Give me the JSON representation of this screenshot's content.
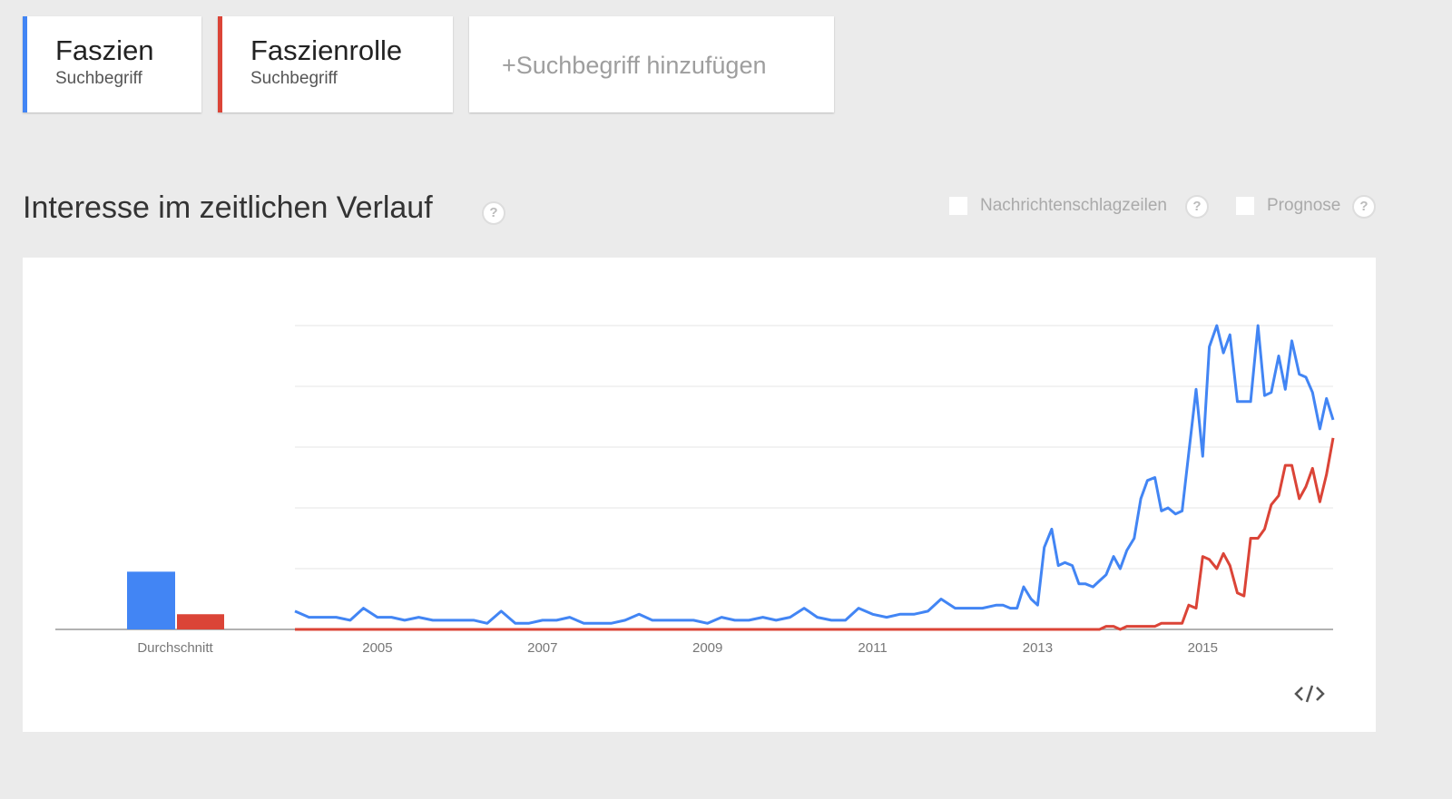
{
  "terms_label": "Suchbegriff",
  "add_term": "+Suchbegriff hinzufügen",
  "section_title": "Interesse im zeitlichen Verlauf",
  "help": "?",
  "options": [
    "Nachrichtenschlagzeilen",
    "Prognose"
  ],
  "chart_data": {
    "type": "line",
    "average_label": "Durchschnitt",
    "x": [
      2004.0,
      2004.17,
      2004.33,
      2004.5,
      2004.67,
      2004.83,
      2005.0,
      2005.17,
      2005.33,
      2005.5,
      2005.67,
      2005.83,
      2006.0,
      2006.17,
      2006.33,
      2006.5,
      2006.67,
      2006.83,
      2007.0,
      2007.17,
      2007.33,
      2007.5,
      2007.67,
      2007.83,
      2008.0,
      2008.17,
      2008.33,
      2008.5,
      2008.67,
      2008.83,
      2009.0,
      2009.17,
      2009.33,
      2009.5,
      2009.67,
      2009.83,
      2010.0,
      2010.17,
      2010.33,
      2010.5,
      2010.67,
      2010.83,
      2011.0,
      2011.17,
      2011.33,
      2011.5,
      2011.67,
      2011.83,
      2012.0,
      2012.17,
      2012.33,
      2012.5,
      2012.58,
      2012.67,
      2012.75,
      2012.83,
      2012.92,
      2013.0,
      2013.08,
      2013.17,
      2013.25,
      2013.33,
      2013.42,
      2013.5,
      2013.58,
      2013.67,
      2013.75,
      2013.83,
      2013.92,
      2014.0,
      2014.08,
      2014.17,
      2014.25,
      2014.33,
      2014.42,
      2014.5,
      2014.58,
      2014.67,
      2014.75,
      2014.83,
      2014.92,
      2015.0,
      2015.08,
      2015.17,
      2015.25,
      2015.33,
      2015.42,
      2015.5,
      2015.58,
      2015.67,
      2015.75,
      2015.83,
      2015.92,
      2016.0,
      2016.08,
      2016.17,
      2016.25,
      2016.33,
      2016.42,
      2016.5,
      2016.58
    ],
    "xlim": [
      2004,
      2016.58
    ],
    "xticks": [
      2005,
      2007,
      2009,
      2011,
      2013,
      2015
    ],
    "ylim": [
      0,
      100
    ],
    "ygrid": [
      0,
      20,
      40,
      60,
      80,
      100
    ],
    "series": [
      {
        "name": "Faszien",
        "color": "#4285f4",
        "average": 19,
        "values": [
          6,
          4,
          4,
          4,
          3,
          7,
          4,
          4,
          3,
          4,
          3,
          3,
          3,
          3,
          2,
          6,
          2,
          2,
          3,
          3,
          4,
          2,
          2,
          2,
          3,
          5,
          3,
          3,
          3,
          3,
          2,
          4,
          3,
          3,
          4,
          3,
          4,
          7,
          4,
          3,
          3,
          7,
          5,
          4,
          5,
          5,
          6,
          10,
          7,
          7,
          7,
          8,
          8,
          7,
          7,
          14,
          10,
          8,
          27,
          33,
          21,
          22,
          21,
          15,
          15,
          14,
          16,
          18,
          24,
          20,
          26,
          30,
          43,
          49,
          50,
          39,
          40,
          38,
          39,
          58,
          79,
          57,
          93,
          100,
          91,
          97,
          75,
          75,
          75,
          100,
          77,
          78,
          90,
          79,
          95,
          84,
          83,
          78,
          66,
          76,
          69
        ]
      },
      {
        "name": "Faszienrolle",
        "color": "#db4437",
        "average": 5,
        "values": [
          0,
          0,
          0,
          0,
          0,
          0,
          0,
          0,
          0,
          0,
          0,
          0,
          0,
          0,
          0,
          0,
          0,
          0,
          0,
          0,
          0,
          0,
          0,
          0,
          0,
          0,
          0,
          0,
          0,
          0,
          0,
          0,
          0,
          0,
          0,
          0,
          0,
          0,
          0,
          0,
          0,
          0,
          0,
          0,
          0,
          0,
          0,
          0,
          0,
          0,
          0,
          0,
          0,
          0,
          0,
          0,
          0,
          0,
          0,
          0,
          0,
          0,
          0,
          0,
          0,
          0,
          0,
          1,
          1,
          0,
          1,
          1,
          1,
          1,
          1,
          2,
          2,
          2,
          2,
          8,
          7,
          24,
          23,
          20,
          25,
          21,
          12,
          11,
          30,
          30,
          33,
          41,
          44,
          54,
          54,
          43,
          47,
          53,
          42,
          51,
          63
        ]
      }
    ]
  }
}
